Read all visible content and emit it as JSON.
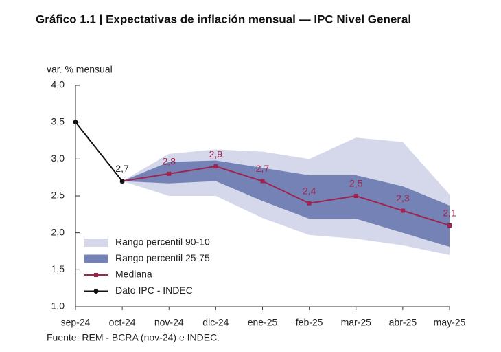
{
  "chart_data": {
    "type": "line",
    "title": "Gráfico 1.1 | Expectativas de inflación mensual — IPC Nivel General",
    "y_label": "var. % mensual",
    "source": "Fuente: REM - BCRA (nov-24) e INDEC.",
    "categories": [
      "sep-24",
      "oct-24",
      "nov-24",
      "dic-24",
      "ene-25",
      "feb-25",
      "mar-25",
      "abr-25",
      "may-25"
    ],
    "ylim": [
      1,
      4
    ],
    "yticks": [
      {
        "value": 1,
        "label": "1,0"
      },
      {
        "value": 1.5,
        "label": "1,5"
      },
      {
        "value": 2,
        "label": "2,0"
      },
      {
        "value": 2.5,
        "label": "2,5"
      },
      {
        "value": 3,
        "label": "3,0"
      },
      {
        "value": 3.5,
        "label": "3,5"
      },
      {
        "value": 4,
        "label": "4,0"
      }
    ],
    "series": [
      {
        "name": "Rango percentil 90-10",
        "style": "band",
        "color": "#d4d8ea",
        "lower": [
          null,
          2.7,
          2.5,
          2.5,
          2.2,
          1.97,
          1.92,
          1.83,
          1.7
        ],
        "upper": [
          null,
          2.7,
          3.07,
          3.13,
          3.1,
          3.0,
          3.29,
          3.23,
          2.52
        ]
      },
      {
        "name": "Rango percentil 25-75",
        "style": "band",
        "color": "#7482b5",
        "lower": [
          null,
          2.7,
          2.67,
          2.7,
          2.43,
          2.19,
          2.19,
          2.0,
          1.81
        ],
        "upper": [
          null,
          2.7,
          2.96,
          2.98,
          2.88,
          2.78,
          2.78,
          2.63,
          2.37
        ]
      },
      {
        "name": "Mediana",
        "style": "line",
        "marker": "square",
        "color": "#a0234e",
        "values": [
          null,
          2.7,
          2.8,
          2.9,
          2.7,
          2.4,
          2.5,
          2.3,
          2.1
        ],
        "value_labels": [
          null,
          null,
          "2,8",
          "2,9",
          "2,7",
          "2,4",
          "2,5",
          "2,3",
          "2,1"
        ]
      },
      {
        "name": "Dato IPC - INDEC",
        "style": "line",
        "marker": "circle",
        "color": "#111111",
        "values": [
          3.5,
          2.7,
          null,
          null,
          null,
          null,
          null,
          null,
          null
        ],
        "value_labels": [
          null,
          "2,7",
          null,
          null,
          null,
          null,
          null,
          null,
          null
        ]
      }
    ]
  }
}
